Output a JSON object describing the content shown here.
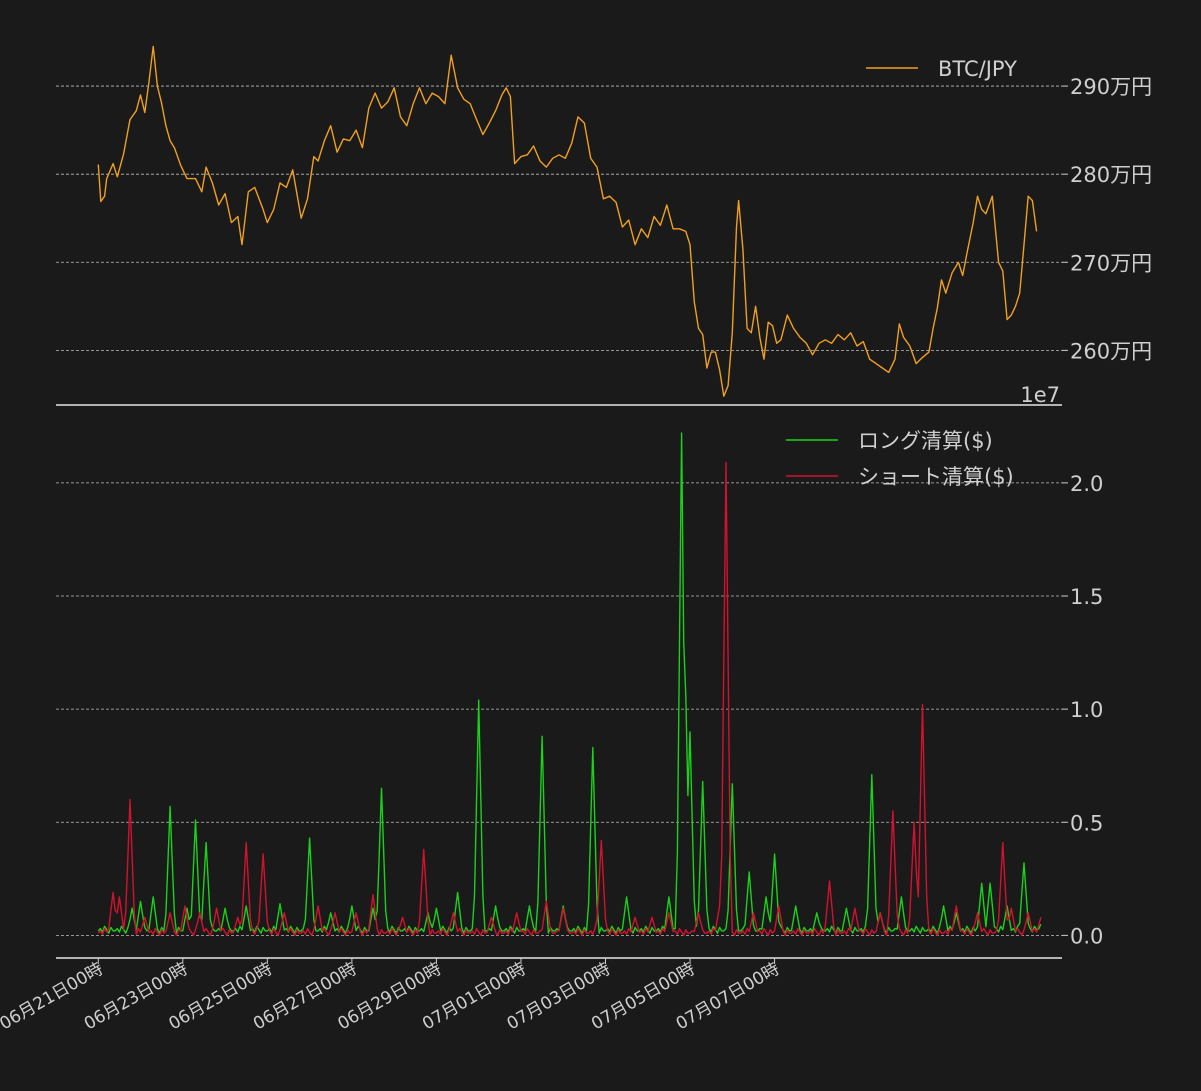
{
  "chart_data": [
    {
      "type": "line",
      "panel": "price",
      "series": [
        {
          "name": "BTC/JPY",
          "color": "#f0a020",
          "points": [
            [
              0,
              2811
            ],
            [
              0.06,
              2769
            ],
            [
              0.15,
              2775
            ],
            [
              0.2,
              2795
            ],
            [
              0.35,
              2812
            ],
            [
              0.45,
              2797
            ],
            [
              0.6,
              2823
            ],
            [
              0.75,
              2862
            ],
            [
              0.9,
              2872
            ],
            [
              1.0,
              2890
            ],
            [
              1.1,
              2870
            ],
            [
              1.2,
              2905
            ],
            [
              1.3,
              2945
            ],
            [
              1.4,
              2900
            ],
            [
              1.5,
              2880
            ],
            [
              1.6,
              2855
            ],
            [
              1.7,
              2838
            ],
            [
              1.8,
              2830
            ],
            [
              1.95,
              2810
            ],
            [
              2.1,
              2795
            ],
            [
              2.3,
              2795
            ],
            [
              2.45,
              2780
            ],
            [
              2.55,
              2808
            ],
            [
              2.7,
              2790
            ],
            [
              2.85,
              2765
            ],
            [
              3.0,
              2778
            ],
            [
              3.15,
              2745
            ],
            [
              3.3,
              2752
            ],
            [
              3.4,
              2720
            ],
            [
              3.55,
              2780
            ],
            [
              3.7,
              2785
            ],
            [
              3.9,
              2760
            ],
            [
              4.0,
              2745
            ],
            [
              4.15,
              2760
            ],
            [
              4.3,
              2790
            ],
            [
              4.45,
              2785
            ],
            [
              4.6,
              2805
            ],
            [
              4.8,
              2750
            ],
            [
              4.95,
              2772
            ],
            [
              5.1,
              2820
            ],
            [
              5.2,
              2815
            ],
            [
              5.35,
              2838
            ],
            [
              5.5,
              2855
            ],
            [
              5.65,
              2825
            ],
            [
              5.8,
              2840
            ],
            [
              5.95,
              2838
            ],
            [
              6.1,
              2850
            ],
            [
              6.25,
              2830
            ],
            [
              6.4,
              2875
            ],
            [
              6.55,
              2892
            ],
            [
              6.7,
              2875
            ],
            [
              6.85,
              2882
            ],
            [
              7.0,
              2898
            ],
            [
              7.15,
              2865
            ],
            [
              7.3,
              2855
            ],
            [
              7.45,
              2880
            ],
            [
              7.6,
              2898
            ],
            [
              7.75,
              2880
            ],
            [
              7.9,
              2892
            ],
            [
              8.05,
              2888
            ],
            [
              8.2,
              2880
            ],
            [
              8.35,
              2935
            ],
            [
              8.5,
              2898
            ],
            [
              8.65,
              2885
            ],
            [
              8.8,
              2880
            ],
            [
              8.95,
              2862
            ],
            [
              9.1,
              2845
            ],
            [
              9.25,
              2858
            ],
            [
              9.4,
              2872
            ],
            [
              9.55,
              2890
            ],
            [
              9.65,
              2898
            ],
            [
              9.75,
              2888
            ],
            [
              9.85,
              2812
            ],
            [
              10.0,
              2820
            ],
            [
              10.15,
              2822
            ],
            [
              10.3,
              2832
            ],
            [
              10.45,
              2815
            ],
            [
              10.6,
              2808
            ],
            [
              10.75,
              2818
            ],
            [
              10.9,
              2822
            ],
            [
              11.05,
              2818
            ],
            [
              11.2,
              2835
            ],
            [
              11.35,
              2865
            ],
            [
              11.5,
              2858
            ],
            [
              11.65,
              2818
            ],
            [
              11.8,
              2808
            ],
            [
              11.95,
              2772
            ],
            [
              12.1,
              2775
            ],
            [
              12.25,
              2768
            ],
            [
              12.4,
              2740
            ],
            [
              12.55,
              2748
            ],
            [
              12.7,
              2720
            ],
            [
              12.85,
              2738
            ],
            [
              13.0,
              2728
            ],
            [
              13.15,
              2752
            ],
            [
              13.3,
              2742
            ],
            [
              13.45,
              2765
            ],
            [
              13.6,
              2738
            ],
            [
              13.75,
              2738
            ],
            [
              13.9,
              2735
            ],
            [
              14.0,
              2720
            ],
            [
              14.1,
              2655
            ],
            [
              14.2,
              2625
            ],
            [
              14.3,
              2618
            ],
            [
              14.4,
              2580
            ],
            [
              14.5,
              2598
            ],
            [
              14.6,
              2598
            ],
            [
              14.7,
              2578
            ],
            [
              14.8,
              2548
            ],
            [
              14.9,
              2560
            ],
            [
              15.0,
              2620
            ],
            [
              15.1,
              2740
            ],
            [
              15.15,
              2770
            ],
            [
              15.25,
              2715
            ],
            [
              15.35,
              2625
            ],
            [
              15.45,
              2620
            ],
            [
              15.55,
              2650
            ],
            [
              15.65,
              2615
            ],
            [
              15.75,
              2590
            ],
            [
              15.85,
              2632
            ],
            [
              15.95,
              2628
            ],
            [
              16.05,
              2608
            ],
            [
              16.15,
              2612
            ],
            [
              16.3,
              2640
            ],
            [
              16.45,
              2625
            ],
            [
              16.6,
              2615
            ],
            [
              16.75,
              2608
            ],
            [
              16.9,
              2595
            ],
            [
              17.05,
              2608
            ],
            [
              17.2,
              2612
            ],
            [
              17.35,
              2608
            ],
            [
              17.5,
              2618
            ],
            [
              17.65,
              2612
            ],
            [
              17.8,
              2620
            ],
            [
              17.95,
              2605
            ],
            [
              18.1,
              2610
            ],
            [
              18.25,
              2590
            ],
            [
              18.4,
              2585
            ],
            [
              18.55,
              2580
            ],
            [
              18.7,
              2575
            ],
            [
              18.85,
              2590
            ],
            [
              18.95,
              2630
            ],
            [
              19.05,
              2615
            ],
            [
              19.2,
              2605
            ],
            [
              19.35,
              2585
            ],
            [
              19.5,
              2592
            ],
            [
              19.65,
              2598
            ],
            [
              19.75,
              2625
            ],
            [
              19.85,
              2648
            ],
            [
              19.95,
              2680
            ],
            [
              20.05,
              2665
            ],
            [
              20.2,
              2688
            ],
            [
              20.35,
              2700
            ],
            [
              20.45,
              2685
            ],
            [
              20.55,
              2710
            ],
            [
              20.7,
              2745
            ],
            [
              20.8,
              2775
            ],
            [
              20.9,
              2760
            ],
            [
              21.0,
              2755
            ],
            [
              21.15,
              2775
            ],
            [
              21.3,
              2700
            ],
            [
              21.4,
              2690
            ],
            [
              21.5,
              2635
            ],
            [
              21.6,
              2640
            ],
            [
              21.7,
              2650
            ],
            [
              21.8,
              2665
            ],
            [
              21.9,
              2720
            ],
            [
              22.0,
              2775
            ],
            [
              22.1,
              2770
            ],
            [
              22.2,
              2735
            ]
          ]
        }
      ],
      "ylim": [
        2538,
        2975
      ],
      "yticks": [
        2600,
        2700,
        2800,
        2900
      ],
      "ytick_labels": [
        "260万円",
        "270万円",
        "280万円",
        "290万円"
      ],
      "offset_text": "1e7",
      "legend_placement": "top-right",
      "grid": "horizontal"
    },
    {
      "type": "line",
      "panel": "liquidations",
      "series": [
        {
          "name": "ロング清算($)",
          "color": "#19d219",
          "spikes": [
            [
              0.8,
              0.12
            ],
            [
              1.0,
              0.15
            ],
            [
              1.3,
              0.17
            ],
            [
              1.7,
              0.57
            ],
            [
              2.1,
              0.12
            ],
            [
              2.3,
              0.51
            ],
            [
              2.55,
              0.41
            ],
            [
              3.0,
              0.12
            ],
            [
              3.5,
              0.13
            ],
            [
              4.3,
              0.14
            ],
            [
              5.0,
              0.43
            ],
            [
              5.5,
              0.1
            ],
            [
              6.0,
              0.13
            ],
            [
              6.5,
              0.12
            ],
            [
              6.7,
              0.65
            ],
            [
              7.8,
              0.1
            ],
            [
              8.0,
              0.12
            ],
            [
              8.5,
              0.19
            ],
            [
              9.0,
              1.04
            ],
            [
              9.4,
              0.13
            ],
            [
              10.2,
              0.13
            ],
            [
              10.5,
              0.88
            ],
            [
              11.0,
              0.13
            ],
            [
              11.7,
              0.83
            ],
            [
              12.5,
              0.17
            ],
            [
              13.5,
              0.17
            ],
            [
              13.8,
              2.22
            ],
            [
              13.9,
              1.06
            ],
            [
              14.0,
              0.9
            ],
            [
              14.3,
              0.68
            ],
            [
              15.0,
              0.67
            ],
            [
              15.4,
              0.28
            ],
            [
              15.8,
              0.17
            ],
            [
              16.0,
              0.36
            ],
            [
              16.5,
              0.13
            ],
            [
              17.0,
              0.1
            ],
            [
              17.7,
              0.12
            ],
            [
              18.3,
              0.71
            ],
            [
              18.5,
              0.1
            ],
            [
              19.0,
              0.17
            ],
            [
              20.0,
              0.13
            ],
            [
              20.3,
              0.1
            ],
            [
              20.9,
              0.23
            ],
            [
              21.1,
              0.23
            ],
            [
              21.5,
              0.13
            ],
            [
              21.9,
              0.32
            ],
            [
              22.3,
              0.05
            ]
          ]
        },
        {
          "name": "ショート清算($)",
          "color": "#d2122e",
          "spikes": [
            [
              0.35,
              0.19
            ],
            [
              0.5,
              0.17
            ],
            [
              0.75,
              0.6
            ],
            [
              1.1,
              0.08
            ],
            [
              1.7,
              0.1
            ],
            [
              2.05,
              0.13
            ],
            [
              2.4,
              0.1
            ],
            [
              2.8,
              0.12
            ],
            [
              3.3,
              0.08
            ],
            [
              3.5,
              0.41
            ],
            [
              3.9,
              0.36
            ],
            [
              4.4,
              0.1
            ],
            [
              5.2,
              0.13
            ],
            [
              5.6,
              0.1
            ],
            [
              6.1,
              0.1
            ],
            [
              6.5,
              0.18
            ],
            [
              7.2,
              0.08
            ],
            [
              7.7,
              0.38
            ],
            [
              8.4,
              0.1
            ],
            [
              9.3,
              0.08
            ],
            [
              9.9,
              0.1
            ],
            [
              10.6,
              0.15
            ],
            [
              11.0,
              0.12
            ],
            [
              11.9,
              0.42
            ],
            [
              12.7,
              0.08
            ],
            [
              13.1,
              0.08
            ],
            [
              13.5,
              0.1
            ],
            [
              14.2,
              0.1
            ],
            [
              14.7,
              0.13
            ],
            [
              14.85,
              2.09
            ],
            [
              15.5,
              0.1
            ],
            [
              16.1,
              0.13
            ],
            [
              17.3,
              0.24
            ],
            [
              17.9,
              0.12
            ],
            [
              18.5,
              0.1
            ],
            [
              18.8,
              0.55
            ],
            [
              19.3,
              0.5
            ],
            [
              19.5,
              1.02
            ],
            [
              20.3,
              0.13
            ],
            [
              20.8,
              0.1
            ],
            [
              21.4,
              0.41
            ],
            [
              21.6,
              0.12
            ],
            [
              22.0,
              0.1
            ],
            [
              22.3,
              0.08
            ]
          ]
        }
      ],
      "ylim": [
        -0.1,
        2.3
      ],
      "yticks": [
        0.0,
        0.5,
        1.0,
        1.5,
        2.0
      ],
      "ytick_labels": [
        "0.0",
        "0.5",
        "1.0",
        "1.5",
        "2.0"
      ],
      "legend_placement": "top-right",
      "grid": "horizontal"
    }
  ],
  "x_axis": {
    "unit": "days since 06月21日00時",
    "xlim": [
      -1.0,
      22.8
    ],
    "ticks": [
      0,
      2,
      4,
      6,
      8,
      10,
      12,
      14,
      16
    ],
    "tick_labels": [
      "06月21日00時",
      "06月23日00時",
      "06月25日00時",
      "06月27日00時",
      "06月29日00時",
      "07月01日00時",
      "07月03日00時",
      "07月05日00時",
      "07月07日00時"
    ]
  },
  "colors": {
    "background": "#1a1a1a",
    "text": "#cfcfcf",
    "grid": "#bdbdbd"
  }
}
